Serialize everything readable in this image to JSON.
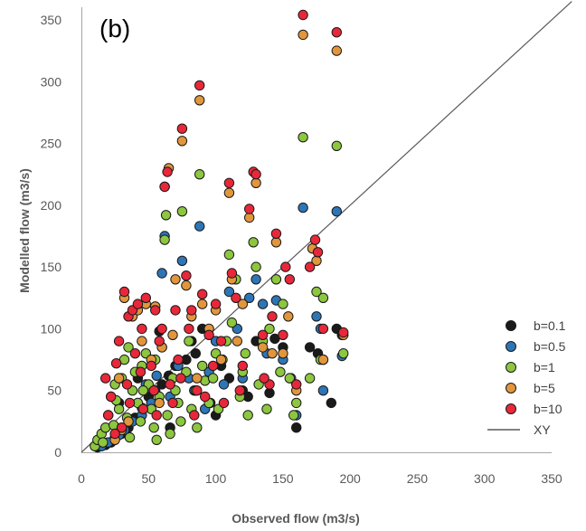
{
  "chart_data": {
    "type": "scatter",
    "panel_label": "(b)",
    "xlabel": "Observed flow (m3/s)",
    "ylabel": "Modelled flow (m3/s)",
    "xlim": [
      0,
      350
    ],
    "ylim": [
      0,
      350
    ],
    "xticks": [
      0,
      50,
      100,
      150,
      200,
      250,
      300,
      350
    ],
    "yticks": [
      0,
      50,
      100,
      150,
      200,
      250,
      300,
      350
    ],
    "grid": false,
    "legend_position": "bottom-right",
    "series": [
      {
        "name": "b=0.1",
        "color": "#1a1a1a",
        "points": [
          [
            12,
            4
          ],
          [
            18,
            6
          ],
          [
            22,
            8
          ],
          [
            25,
            12
          ],
          [
            30,
            15
          ],
          [
            35,
            20
          ],
          [
            40,
            28
          ],
          [
            45,
            36
          ],
          [
            50,
            45
          ],
          [
            55,
            50
          ],
          [
            60,
            55
          ],
          [
            65,
            62
          ],
          [
            70,
            70
          ],
          [
            78,
            75
          ],
          [
            85,
            80
          ],
          [
            90,
            100
          ],
          [
            100,
            30
          ],
          [
            110,
            60
          ],
          [
            120,
            50
          ],
          [
            130,
            90
          ],
          [
            140,
            48
          ],
          [
            150,
            85
          ],
          [
            160,
            20
          ],
          [
            170,
            85
          ],
          [
            180,
            75
          ],
          [
            190,
            100
          ],
          [
            194,
            95
          ],
          [
            28,
            40
          ],
          [
            42,
            60
          ],
          [
            58,
            98
          ],
          [
            66,
            20
          ],
          [
            82,
            90
          ],
          [
            96,
            40
          ],
          [
            104,
            70
          ],
          [
            124,
            45
          ],
          [
            144,
            92
          ],
          [
            176,
            80
          ],
          [
            186,
            40
          ]
        ]
      },
      {
        "name": "b=0.5",
        "color": "#2e75b6",
        "points": [
          [
            15,
            5
          ],
          [
            20,
            8
          ],
          [
            28,
            14
          ],
          [
            32,
            18
          ],
          [
            38,
            25
          ],
          [
            45,
            30
          ],
          [
            52,
            40
          ],
          [
            60,
            145
          ],
          [
            62,
            175
          ],
          [
            66,
            45
          ],
          [
            75,
            155
          ],
          [
            80,
            60
          ],
          [
            88,
            183
          ],
          [
            95,
            65
          ],
          [
            100,
            90
          ],
          [
            110,
            130
          ],
          [
            120,
            60
          ],
          [
            125,
            125
          ],
          [
            130,
            140
          ],
          [
            135,
            120
          ],
          [
            145,
            123
          ],
          [
            150,
            75
          ],
          [
            160,
            30
          ],
          [
            165,
            198
          ],
          [
            175,
            110
          ],
          [
            180,
            50
          ],
          [
            190,
            195
          ],
          [
            194,
            78
          ],
          [
            48,
            55
          ],
          [
            56,
            62
          ],
          [
            72,
            70
          ],
          [
            84,
            50
          ],
          [
            92,
            35
          ],
          [
            106,
            55
          ],
          [
            116,
            100
          ],
          [
            138,
            80
          ],
          [
            156,
            60
          ],
          [
            178,
            100
          ]
        ]
      },
      {
        "name": "b=1",
        "color": "#8dc63f",
        "points": [
          [
            10,
            5
          ],
          [
            12,
            10
          ],
          [
            15,
            15
          ],
          [
            18,
            20
          ],
          [
            20,
            30
          ],
          [
            22,
            45
          ],
          [
            25,
            55
          ],
          [
            28,
            35
          ],
          [
            30,
            60
          ],
          [
            32,
            75
          ],
          [
            35,
            85
          ],
          [
            38,
            50
          ],
          [
            40,
            65
          ],
          [
            42,
            40
          ],
          [
            45,
            70
          ],
          [
            48,
            80
          ],
          [
            50,
            55
          ],
          [
            52,
            35
          ],
          [
            55,
            75
          ],
          [
            58,
            45
          ],
          [
            60,
            85
          ],
          [
            62,
            172
          ],
          [
            63,
            192
          ],
          [
            68,
            60
          ],
          [
            72,
            40
          ],
          [
            75,
            195
          ],
          [
            78,
            65
          ],
          [
            80,
            90
          ],
          [
            85,
            50
          ],
          [
            88,
            225
          ],
          [
            90,
            70
          ],
          [
            95,
            40
          ],
          [
            100,
            80
          ],
          [
            105,
            75
          ],
          [
            110,
            160
          ],
          [
            112,
            105
          ],
          [
            115,
            140
          ],
          [
            120,
            65
          ],
          [
            122,
            80
          ],
          [
            128,
            170
          ],
          [
            130,
            150
          ],
          [
            135,
            90
          ],
          [
            140,
            100
          ],
          [
            145,
            140
          ],
          [
            150,
            120
          ],
          [
            155,
            60
          ],
          [
            160,
            40
          ],
          [
            165,
            255
          ],
          [
            170,
            60
          ],
          [
            175,
            130
          ],
          [
            180,
            125
          ],
          [
            190,
            248
          ],
          [
            195,
            80
          ],
          [
            16,
            8
          ],
          [
            24,
            22
          ],
          [
            26,
            42
          ],
          [
            34,
            28
          ],
          [
            36,
            12
          ],
          [
            44,
            25
          ],
          [
            46,
            50
          ],
          [
            54,
            20
          ],
          [
            56,
            10
          ],
          [
            64,
            30
          ],
          [
            66,
            15
          ],
          [
            70,
            50
          ],
          [
            74,
            25
          ],
          [
            82,
            35
          ],
          [
            86,
            20
          ],
          [
            92,
            58
          ],
          [
            98,
            60
          ],
          [
            102,
            35
          ],
          [
            108,
            90
          ],
          [
            118,
            45
          ],
          [
            124,
            30
          ],
          [
            132,
            55
          ],
          [
            138,
            35
          ],
          [
            148,
            65
          ],
          [
            158,
            30
          ],
          [
            178,
            75
          ]
        ]
      },
      {
        "name": "b=5",
        "color": "#e2963c",
        "points": [
          [
            25,
            10
          ],
          [
            30,
            18
          ],
          [
            35,
            25
          ],
          [
            38,
            110
          ],
          [
            42,
            115
          ],
          [
            45,
            90
          ],
          [
            48,
            120
          ],
          [
            52,
            75
          ],
          [
            55,
            118
          ],
          [
            60,
            85
          ],
          [
            62,
            215
          ],
          [
            65,
            230
          ],
          [
            70,
            140
          ],
          [
            75,
            252
          ],
          [
            78,
            135
          ],
          [
            82,
            110
          ],
          [
            88,
            285
          ],
          [
            90,
            120
          ],
          [
            95,
            100
          ],
          [
            100,
            115
          ],
          [
            110,
            210
          ],
          [
            112,
            140
          ],
          [
            120,
            120
          ],
          [
            125,
            190
          ],
          [
            130,
            218
          ],
          [
            135,
            85
          ],
          [
            145,
            170
          ],
          [
            150,
            80
          ],
          [
            160,
            50
          ],
          [
            165,
            338
          ],
          [
            175,
            155
          ],
          [
            180,
            75
          ],
          [
            190,
            325
          ],
          [
            195,
            95
          ],
          [
            28,
            60
          ],
          [
            32,
            125
          ],
          [
            58,
            40
          ],
          [
            68,
            95
          ],
          [
            86,
            60
          ],
          [
            104,
            75
          ],
          [
            116,
            90
          ],
          [
            142,
            80
          ],
          [
            154,
            110
          ],
          [
            172,
            165
          ]
        ]
      },
      {
        "name": "b=10",
        "color": "#e8283a",
        "points": [
          [
            18,
            60
          ],
          [
            22,
            45
          ],
          [
            25,
            15
          ],
          [
            28,
            90
          ],
          [
            30,
            20
          ],
          [
            32,
            130
          ],
          [
            35,
            110
          ],
          [
            38,
            115
          ],
          [
            40,
            80
          ],
          [
            42,
            120
          ],
          [
            45,
            100
          ],
          [
            48,
            125
          ],
          [
            52,
            70
          ],
          [
            55,
            115
          ],
          [
            58,
            90
          ],
          [
            60,
            100
          ],
          [
            62,
            215
          ],
          [
            64,
            227
          ],
          [
            66,
            55
          ],
          [
            70,
            115
          ],
          [
            72,
            75
          ],
          [
            75,
            262
          ],
          [
            78,
            143
          ],
          [
            80,
            100
          ],
          [
            82,
            115
          ],
          [
            86,
            50
          ],
          [
            88,
            297
          ],
          [
            90,
            128
          ],
          [
            95,
            95
          ],
          [
            100,
            120
          ],
          [
            104,
            90
          ],
          [
            110,
            218
          ],
          [
            112,
            145
          ],
          [
            115,
            125
          ],
          [
            120,
            70
          ],
          [
            125,
            197
          ],
          [
            128,
            227
          ],
          [
            130,
            225
          ],
          [
            135,
            95
          ],
          [
            140,
            55
          ],
          [
            145,
            177
          ],
          [
            150,
            95
          ],
          [
            155,
            140
          ],
          [
            160,
            55
          ],
          [
            165,
            354
          ],
          [
            170,
            150
          ],
          [
            174,
            172
          ],
          [
            180,
            100
          ],
          [
            190,
            340
          ],
          [
            195,
            97
          ],
          [
            20,
            30
          ],
          [
            26,
            72
          ],
          [
            34,
            55
          ],
          [
            36,
            40
          ],
          [
            44,
            65
          ],
          [
            46,
            35
          ],
          [
            54,
            50
          ],
          [
            56,
            30
          ],
          [
            68,
            40
          ],
          [
            74,
            60
          ],
          [
            84,
            30
          ],
          [
            92,
            45
          ],
          [
            98,
            70
          ],
          [
            106,
            40
          ],
          [
            118,
            50
          ],
          [
            136,
            60
          ],
          [
            142,
            110
          ],
          [
            152,
            150
          ],
          [
            176,
            162
          ]
        ]
      }
    ],
    "lines": [
      {
        "name": "XY",
        "color": "#595959",
        "x": [
          0,
          365
        ],
        "y": [
          0,
          365
        ]
      }
    ]
  }
}
